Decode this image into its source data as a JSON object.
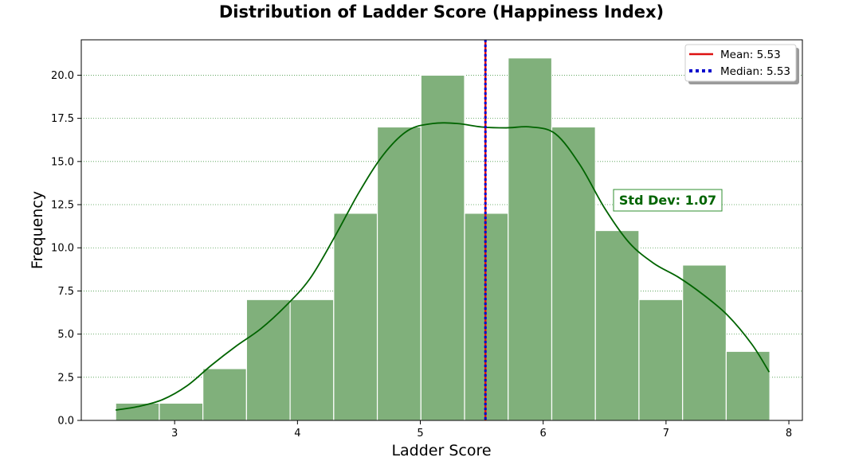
{
  "chart_data": {
    "type": "bar",
    "title": "Distribution of Ladder Score (Happiness Index)",
    "xlabel": "Ladder Score",
    "ylabel": "Frequency",
    "xlim": [
      2.24,
      8.11
    ],
    "ylim": [
      0,
      22.05
    ],
    "x_ticks": [
      3,
      4,
      5,
      6,
      7,
      8
    ],
    "x_tick_labels": [
      "3",
      "4",
      "5",
      "6",
      "7",
      "8"
    ],
    "y_ticks": [
      0,
      2.5,
      5,
      7.5,
      10,
      12.5,
      15,
      17.5,
      20
    ],
    "y_tick_labels": [
      "0.0",
      "2.5",
      "5.0",
      "7.5",
      "10.0",
      "12.5",
      "15.0",
      "17.5",
      "20.0"
    ],
    "grid": "horizontal dotted",
    "bins": [
      {
        "start": 2.52,
        "end": 2.875,
        "count": 1
      },
      {
        "start": 2.875,
        "end": 3.23,
        "count": 1
      },
      {
        "start": 3.23,
        "end": 3.585,
        "count": 3
      },
      {
        "start": 3.585,
        "end": 3.94,
        "count": 7
      },
      {
        "start": 3.94,
        "end": 4.295,
        "count": 7
      },
      {
        "start": 4.295,
        "end": 4.65,
        "count": 12
      },
      {
        "start": 4.65,
        "end": 5.005,
        "count": 17
      },
      {
        "start": 5.005,
        "end": 5.36,
        "count": 20
      },
      {
        "start": 5.36,
        "end": 5.715,
        "count": 12
      },
      {
        "start": 5.715,
        "end": 6.07,
        "count": 21
      },
      {
        "start": 6.07,
        "end": 6.425,
        "count": 17
      },
      {
        "start": 6.425,
        "end": 6.78,
        "count": 11
      },
      {
        "start": 6.78,
        "end": 7.135,
        "count": 7
      },
      {
        "start": 7.135,
        "end": 7.49,
        "count": 9
      },
      {
        "start": 7.49,
        "end": 7.845,
        "count": 4
      }
    ],
    "kde_curve": [
      [
        2.52,
        0.6
      ],
      [
        2.7,
        0.8
      ],
      [
        2.9,
        1.2
      ],
      [
        3.1,
        2.0
      ],
      [
        3.3,
        3.2
      ],
      [
        3.5,
        4.3
      ],
      [
        3.7,
        5.3
      ],
      [
        3.9,
        6.6
      ],
      [
        4.1,
        8.2
      ],
      [
        4.3,
        10.6
      ],
      [
        4.5,
        13.2
      ],
      [
        4.7,
        15.4
      ],
      [
        4.9,
        16.8
      ],
      [
        5.1,
        17.2
      ],
      [
        5.3,
        17.2
      ],
      [
        5.5,
        17.0
      ],
      [
        5.7,
        16.95
      ],
      [
        5.9,
        17.0
      ],
      [
        6.1,
        16.6
      ],
      [
        6.3,
        14.8
      ],
      [
        6.5,
        12.3
      ],
      [
        6.7,
        10.3
      ],
      [
        6.9,
        9.1
      ],
      [
        7.1,
        8.3
      ],
      [
        7.3,
        7.3
      ],
      [
        7.5,
        6.1
      ],
      [
        7.7,
        4.4
      ],
      [
        7.84,
        2.8
      ]
    ],
    "mean": 5.53,
    "median": 5.53,
    "legend": {
      "position": "top-right",
      "entries": [
        {
          "label": "Mean: 5.53",
          "color": "#dd1111",
          "style": "solid"
        },
        {
          "label": "Median: 5.53",
          "color": "#0000cc",
          "style": "dotted"
        }
      ]
    },
    "annotation": {
      "text": "Std Dev: 1.07",
      "x": 6.6,
      "y": 12.5
    },
    "colors": {
      "bar_fill": "#80b07b",
      "bar_edge": "#ffffff",
      "kde": "#006400",
      "mean_line": "#dd1111",
      "median_line": "#0000cc",
      "grid": "#4a9a4a",
      "annotation_text": "#006400"
    }
  }
}
